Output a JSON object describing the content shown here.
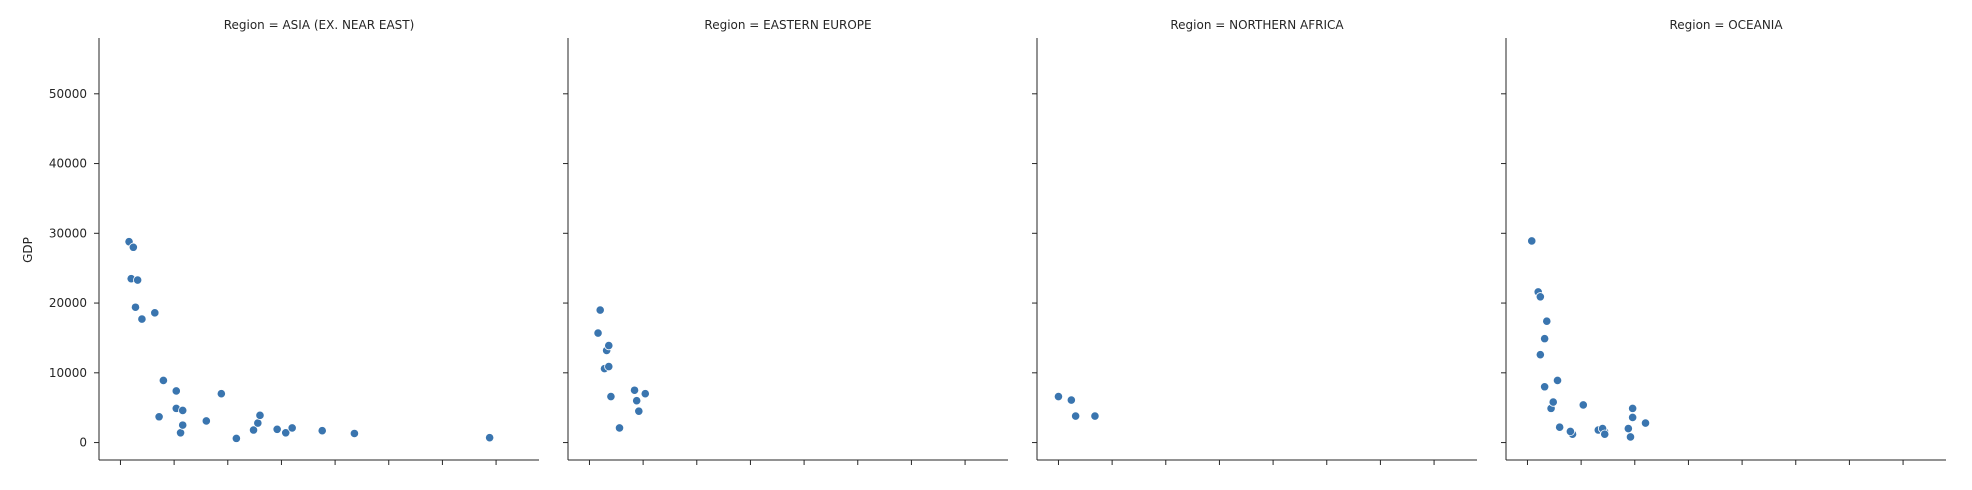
{
  "chart_data": {
    "type": "scatter",
    "ylabel": "GDP",
    "ylim": [
      -2500,
      58000
    ],
    "yticks": [
      0,
      10000,
      20000,
      30000,
      40000,
      50000
    ],
    "point_color": "#3a75af",
    "grid": false,
    "panels": [
      {
        "title": "Region = ASIA (EX. NEAR EAST)",
        "x": [
          0.4,
          0.6,
          0.5,
          0.8,
          0.7,
          1.0,
          1.6,
          1.8,
          2.0,
          2.6,
          2.9,
          2.8,
          2.9,
          2.6,
          4.0,
          4.7,
          5.4,
          6.2,
          6.4,
          6.5,
          7.3,
          7.7,
          8.0,
          9.4,
          10.9,
          17.2
        ],
        "y": [
          28800,
          28000,
          23500,
          23300,
          19400,
          17700,
          18600,
          3700,
          8900,
          4900,
          4600,
          1400,
          2500,
          7400,
          3100,
          7000,
          600,
          1800,
          2800,
          3900,
          1900,
          1400,
          2100,
          1700,
          1300,
          700
        ]
      },
      {
        "title": "Region = EASTERN EUROPE",
        "x": [
          0.5,
          0.4,
          0.8,
          0.9,
          0.7,
          0.9,
          1.0,
          1.4,
          2.1,
          2.2,
          2.3,
          2.6
        ],
        "y": [
          19000,
          15700,
          13200,
          13900,
          10600,
          10900,
          6600,
          2100,
          7500,
          6000,
          4500,
          7000
        ]
      },
      {
        "title": "Region = NORTHERN AFRICA",
        "x": [
          0.0,
          0.6,
          0.8,
          1.7
        ],
        "y": [
          6600,
          6100,
          3800,
          3800
        ]
      },
      {
        "title": "Region = OCEANIA",
        "x": [
          0.2,
          0.5,
          0.6,
          0.9,
          0.8,
          0.6,
          0.8,
          1.4,
          1.1,
          1.2,
          1.5,
          2.1,
          2.0,
          2.6,
          3.3,
          3.6,
          4.9,
          4.9,
          3.5,
          3.6,
          4.8,
          5.5,
          4.7
        ],
        "y": [
          28900,
          21600,
          20900,
          17400,
          14900,
          12600,
          8000,
          8900,
          4900,
          5800,
          2200,
          1200,
          1600,
          5400,
          1800,
          1500,
          3600,
          4900,
          2000,
          1200,
          800,
          2800,
          2000
        ]
      }
    ]
  }
}
